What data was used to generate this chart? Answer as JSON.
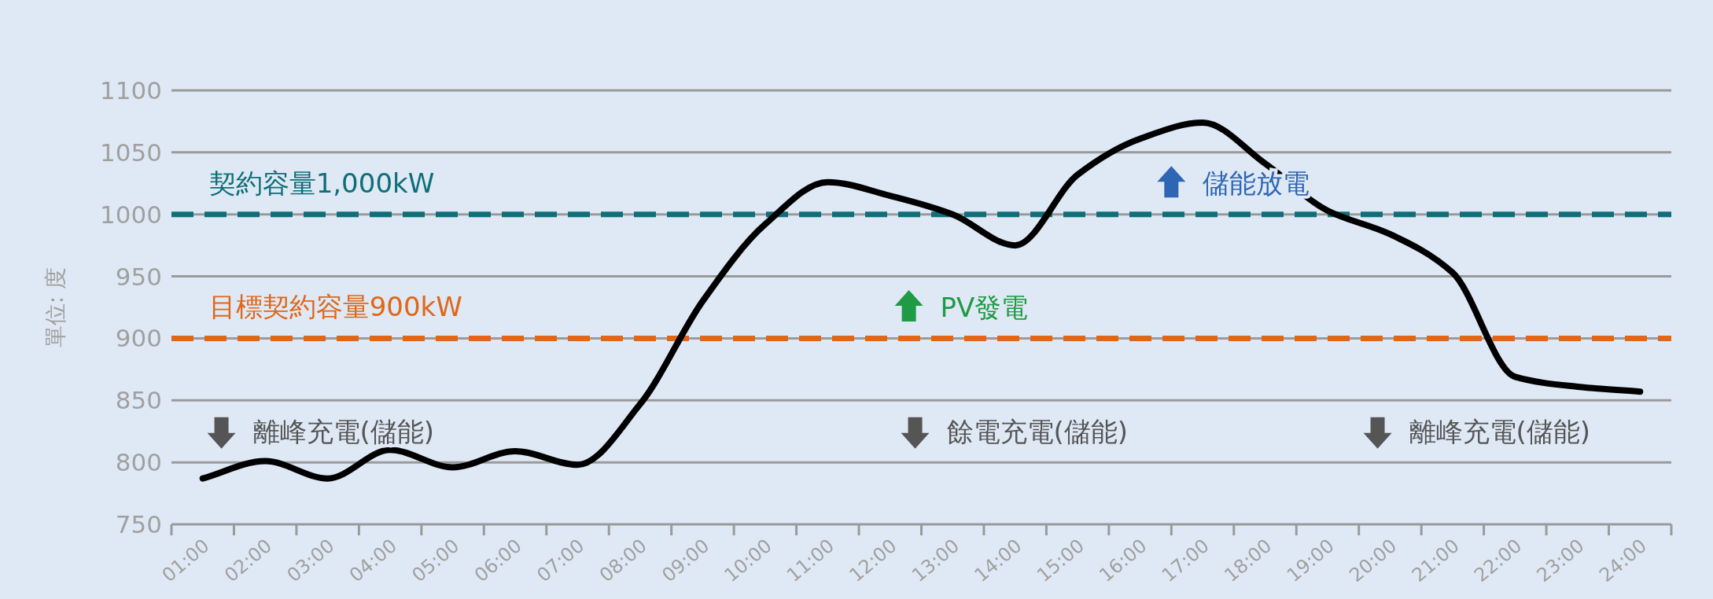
{
  "chart_data": {
    "type": "line",
    "ylabel": "單位: 度",
    "categories": [
      "01:00",
      "02:00",
      "03:00",
      "04:00",
      "05:00",
      "06:00",
      "07:00",
      "08:00",
      "09:00",
      "10:00",
      "11:00",
      "12:00",
      "13:00",
      "14:00",
      "15:00",
      "16:00",
      "17:00",
      "18:00",
      "19:00",
      "20:00",
      "21:00",
      "22:00",
      "23:00",
      "24:00"
    ],
    "series": [
      {
        "color": "#000000",
        "values": [
          787,
          801,
          787,
          810,
          796,
          809,
          798,
          847,
          930,
          992,
          1026,
          1015,
          1000,
          975,
          1032,
          1061,
          1074,
          1041,
          1003,
          984,
          953,
          869,
          861,
          857
        ]
      }
    ],
    "ylim": [
      750,
      1100
    ],
    "yticks": [
      750,
      800,
      850,
      900,
      950,
      1000,
      1050,
      1100
    ],
    "ref_lines": [
      {
        "axis": "y",
        "value": 1000,
        "label": "契約容量1,000kW",
        "color": "#0f6e78",
        "line_style": "dashed"
      },
      {
        "axis": "y",
        "value": 900,
        "label": "目標契約容量900kW",
        "color": "#e0671a",
        "line_style": "dashed"
      }
    ],
    "annotations": [
      "儲能放電",
      "PV發電",
      "離峰充電(儲能)",
      "餘電充電(儲能)",
      "離峰充電(儲能)"
    ],
    "grid": "y",
    "marker": "none",
    "line_style": "solid"
  }
}
